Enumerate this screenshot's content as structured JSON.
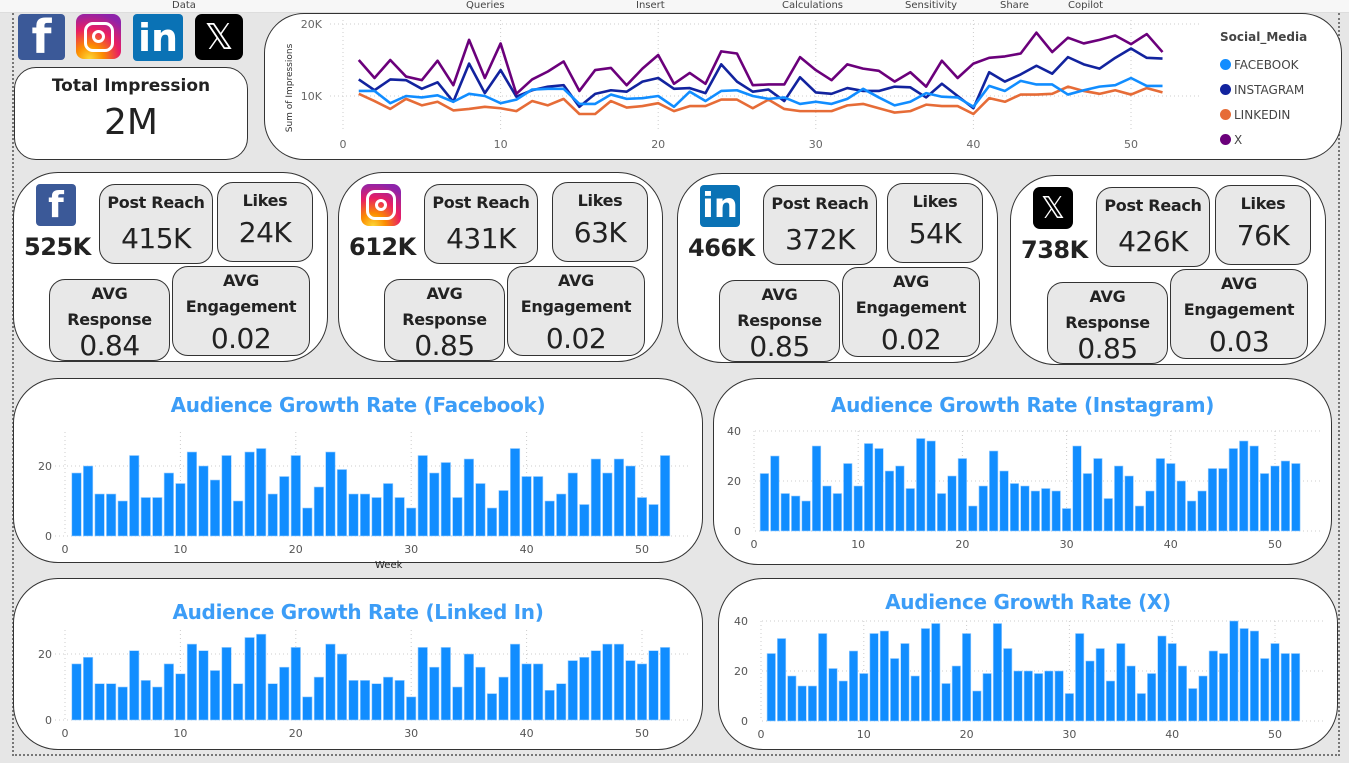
{
  "ribbon": [
    "Data",
    "Queries",
    "Insert",
    "Calculations",
    "Sensitivity",
    "Share",
    "Copilot"
  ],
  "colors": {
    "FACEBOOK": "#118DFF",
    "INSTAGRAM": "#12239E",
    "LINKEDIN": "#E66C37",
    "X": "#6B007B",
    "bar": "#118DFF",
    "title": "#3C9DF7"
  },
  "icons": [
    "facebook-logo",
    "instagram-logo",
    "linkedin-logo",
    "x-logo"
  ],
  "total": {
    "label": "Total Impression",
    "value": "2M"
  },
  "platforms": [
    {
      "name": "facebook",
      "total": "525K",
      "post_reach_label": "Post Reach",
      "post_reach": "415K",
      "likes_label": "Likes",
      "likes": "24K",
      "resp_label1": "AVG",
      "resp_label2": "Response",
      "resp": "0.84",
      "eng_label1": "AVG",
      "eng_label2": "Engagement",
      "eng": "0.02"
    },
    {
      "name": "instagram",
      "total": "612K",
      "post_reach_label": "Post Reach",
      "post_reach": "431K",
      "likes_label": "Likes",
      "likes": "63K",
      "resp_label1": "AVG",
      "resp_label2": "Response",
      "resp": "0.85",
      "eng_label1": "AVG",
      "eng_label2": "Engagement",
      "eng": "0.02"
    },
    {
      "name": "linkedin",
      "total": "466K",
      "post_reach_label": "Post Reach",
      "post_reach": "372K",
      "likes_label": "Likes",
      "likes": "54K",
      "resp_label1": "AVG",
      "resp_label2": "Response",
      "resp": "0.85",
      "eng_label1": "AVG",
      "eng_label2": "Engagement",
      "eng": "0.02"
    },
    {
      "name": "x",
      "total": "738K",
      "post_reach_label": "Post Reach",
      "post_reach": "426K",
      "likes_label": "Likes",
      "likes": "76K",
      "resp_label1": "AVG",
      "resp_label2": "Response",
      "resp": "0.85",
      "eng_label1": "AVG",
      "eng_label2": "Engagement",
      "eng": "0.03"
    }
  ],
  "chart_data": [
    {
      "type": "line",
      "ylabel": "Sum of Impressions",
      "legend_title": "Social_Media",
      "legend_placement": "right",
      "grid": true,
      "xticks": [
        0,
        10,
        20,
        30,
        40,
        50
      ],
      "yticks": [
        10000,
        20000
      ],
      "ytick_labels": [
        "10K",
        "20K"
      ],
      "xlim": [
        0,
        52
      ],
      "ylim": [
        5000,
        20000
      ],
      "x": [
        1,
        2,
        3,
        4,
        5,
        6,
        7,
        8,
        9,
        10,
        11,
        12,
        13,
        14,
        15,
        16,
        17,
        18,
        19,
        20,
        21,
        22,
        23,
        24,
        25,
        26,
        27,
        28,
        29,
        30,
        31,
        32,
        33,
        34,
        35,
        36,
        37,
        38,
        39,
        40,
        41,
        42,
        43,
        44,
        45,
        46,
        47,
        48,
        49,
        50,
        51,
        52
      ],
      "series": [
        {
          "name": "FACEBOOK",
          "values": [
            10700,
            10700,
            9000,
            10000,
            9800,
            10100,
            9200,
            10300,
            10000,
            9000,
            9500,
            10900,
            11000,
            11000,
            8900,
            8900,
            10200,
            9600,
            9700,
            10000,
            8500,
            10600,
            9300,
            10700,
            10800,
            10000,
            9600,
            9800,
            8900,
            9200,
            8900,
            9600,
            11000,
            9800,
            8700,
            9200,
            10400,
            9900,
            9800,
            8500,
            11400,
            10700,
            12100,
            11600,
            11600,
            10200,
            10800,
            11300,
            11500,
            12500,
            11400,
            11400
          ]
        },
        {
          "name": "INSTAGRAM",
          "values": [
            12300,
            10800,
            12300,
            12200,
            11000,
            11900,
            9200,
            14500,
            10400,
            13600,
            9900,
            10800,
            11300,
            11500,
            8500,
            10300,
            10800,
            10600,
            12000,
            12500,
            11000,
            11100,
            10400,
            14400,
            12000,
            10600,
            10900,
            9300,
            12600,
            10500,
            10300,
            11100,
            10700,
            10700,
            11300,
            11200,
            9800,
            11700,
            10000,
            8300,
            13300,
            12000,
            13000,
            14200,
            13100,
            15400,
            14400,
            13800,
            15300,
            16600,
            15300,
            15200
          ]
        },
        {
          "name": "LINKEDIN",
          "values": [
            10300,
            9300,
            8200,
            9600,
            8700,
            9200,
            8000,
            8200,
            8500,
            8300,
            7900,
            9300,
            8700,
            9600,
            7500,
            7500,
            9300,
            8400,
            8600,
            9000,
            7900,
            8600,
            8600,
            9500,
            9500,
            8300,
            9500,
            8200,
            7900,
            7900,
            7900,
            8700,
            8900,
            8300,
            7700,
            7900,
            8800,
            8600,
            8600,
            7500,
            9700,
            9200,
            10200,
            10200,
            10300,
            11300,
            10700,
            10300,
            10800,
            10200,
            11100,
            10500
          ]
        },
        {
          "name": "X",
          "values": [
            15000,
            12500,
            15000,
            12700,
            12200,
            14900,
            11500,
            17800,
            12500,
            17300,
            10300,
            12300,
            13400,
            14800,
            10700,
            13600,
            13900,
            11500,
            13800,
            15700,
            11700,
            13200,
            11700,
            16200,
            15900,
            11500,
            11600,
            11600,
            15400,
            13600,
            12200,
            14400,
            13800,
            13500,
            12000,
            13300,
            11300,
            14900,
            12500,
            14500,
            15300,
            15500,
            15900,
            18800,
            16100,
            18100,
            17300,
            17800,
            18400,
            17200,
            18600,
            16100
          ]
        }
      ]
    },
    {
      "type": "bar",
      "title": "Audience Growth Rate (Facebook)",
      "xlabel": "Week",
      "xticks": [
        0,
        10,
        20,
        30,
        40,
        50
      ],
      "yticks": [
        0,
        20
      ],
      "ylim": [
        0,
        28
      ],
      "grid": true,
      "values": [
        18,
        20,
        12,
        12,
        10,
        23,
        11,
        11,
        18,
        15,
        24,
        20,
        16,
        23,
        10,
        24,
        25,
        12,
        17,
        23,
        8,
        14,
        24,
        19,
        12,
        12,
        11,
        15,
        11,
        8,
        23,
        18,
        21,
        11,
        22,
        15,
        8,
        13,
        25,
        17,
        17,
        10,
        12,
        18,
        9,
        22,
        18,
        22,
        20,
        11,
        9,
        23
      ]
    },
    {
      "type": "bar",
      "title": "Audience Growth Rate (Instagram)",
      "xticks": [
        0,
        10,
        20,
        30,
        40,
        50
      ],
      "yticks": [
        0,
        20,
        40
      ],
      "ylim": [
        0,
        40
      ],
      "grid": true,
      "values": [
        23,
        30,
        15,
        14,
        12,
        34,
        18,
        15,
        27,
        18,
        35,
        33,
        24,
        26,
        17,
        37,
        36,
        15,
        22,
        29,
        10,
        18,
        32,
        24,
        19,
        18,
        16,
        17,
        16,
        9,
        34,
        23,
        29,
        13,
        26,
        22,
        10,
        16,
        29,
        27,
        20,
        12,
        16,
        25,
        25,
        33,
        36,
        34,
        23,
        26,
        28,
        27
      ]
    },
    {
      "type": "bar",
      "title": "Audience Growth Rate (Linked In)",
      "xticks": [
        0,
        10,
        20,
        30,
        40,
        50
      ],
      "yticks": [
        0,
        20
      ],
      "ylim": [
        0,
        26
      ],
      "grid": true,
      "values": [
        17,
        19,
        11,
        11,
        10,
        21,
        12,
        10,
        17,
        14,
        23,
        21,
        15,
        22,
        11,
        25,
        26,
        11,
        16,
        22,
        7,
        13,
        23,
        20,
        12,
        12,
        11,
        13,
        12,
        7,
        22,
        16,
        22,
        10,
        20,
        16,
        8,
        13,
        23,
        17,
        17,
        9,
        11,
        18,
        19,
        21,
        23,
        23,
        18,
        17,
        21,
        22
      ]
    },
    {
      "type": "bar",
      "title": "Audience Growth Rate (X)",
      "xticks": [
        0,
        10,
        20,
        30,
        40,
        50
      ],
      "yticks": [
        0,
        20,
        40
      ],
      "ylim": [
        0,
        40
      ],
      "grid": true,
      "values": [
        27,
        33,
        18,
        14,
        14,
        35,
        21,
        16,
        28,
        19,
        35,
        36,
        25,
        31,
        18,
        37,
        39,
        15,
        22,
        35,
        12,
        19,
        39,
        29,
        20,
        20,
        19,
        20,
        20,
        11,
        35,
        24,
        29,
        16,
        31,
        22,
        11,
        19,
        34,
        31,
        22,
        13,
        18,
        28,
        27,
        40,
        37,
        36,
        25,
        31,
        27,
        27
      ]
    }
  ]
}
